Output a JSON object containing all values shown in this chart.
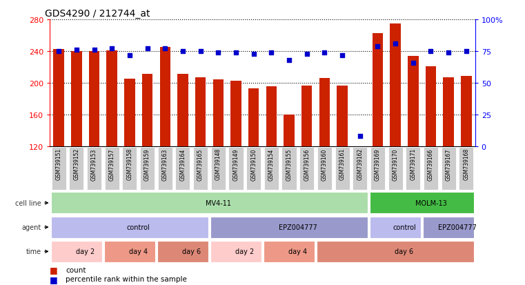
{
  "title": "GDS4290 / 212744_at",
  "samples": [
    "GSM739151",
    "GSM739152",
    "GSM739153",
    "GSM739157",
    "GSM739158",
    "GSM739159",
    "GSM739163",
    "GSM739164",
    "GSM739165",
    "GSM739148",
    "GSM739149",
    "GSM739150",
    "GSM739154",
    "GSM739155",
    "GSM739156",
    "GSM739160",
    "GSM739161",
    "GSM739162",
    "GSM739169",
    "GSM739170",
    "GSM739171",
    "GSM739166",
    "GSM739167",
    "GSM739168"
  ],
  "counts": [
    243,
    240,
    240,
    241,
    205,
    211,
    245,
    211,
    207,
    204,
    203,
    193,
    196,
    160,
    197,
    206,
    197,
    120,
    263,
    275,
    234,
    221,
    207,
    209
  ],
  "percentile": [
    75,
    76,
    76,
    77,
    72,
    77,
    77,
    75,
    75,
    74,
    74,
    73,
    74,
    68,
    73,
    74,
    72,
    8,
    79,
    81,
    66,
    75,
    74,
    75
  ],
  "ylim_left": [
    120,
    280
  ],
  "ylim_right": [
    0,
    100
  ],
  "yticks_left": [
    120,
    160,
    200,
    240,
    280
  ],
  "yticks_right": [
    0,
    25,
    50,
    75,
    100
  ],
  "bar_color": "#cc2200",
  "dot_color": "#0000cc",
  "cell_line_spans": [
    {
      "label": "MV4-11",
      "start": 0,
      "end": 18,
      "color": "#aaddaa"
    },
    {
      "label": "MOLM-13",
      "start": 18,
      "end": 24,
      "color": "#44bb44"
    }
  ],
  "agent_spans": [
    {
      "label": "control",
      "start": 0,
      "end": 9,
      "color": "#bbbbee"
    },
    {
      "label": "EPZ004777",
      "start": 9,
      "end": 18,
      "color": "#9999cc"
    },
    {
      "label": "control",
      "start": 18,
      "end": 21,
      "color": "#bbbbee"
    },
    {
      "label": "EPZ004777",
      "start": 21,
      "end": 24,
      "color": "#9999cc"
    }
  ],
  "time_spans": [
    {
      "label": "day 2",
      "start": 0,
      "end": 3,
      "color": "#ffcccc"
    },
    {
      "label": "day 4",
      "start": 3,
      "end": 6,
      "color": "#ee9988"
    },
    {
      "label": "day 6",
      "start": 6,
      "end": 9,
      "color": "#dd8877"
    },
    {
      "label": "day 2",
      "start": 9,
      "end": 12,
      "color": "#ffcccc"
    },
    {
      "label": "day 4",
      "start": 12,
      "end": 15,
      "color": "#ee9988"
    },
    {
      "label": "day 6",
      "start": 15,
      "end": 24,
      "color": "#dd8877"
    }
  ],
  "bg_color": "#ffffff",
  "xticklabel_bg": "#cccccc",
  "row_label_color": "#333333",
  "row_label_fontsize": 7,
  "bar_fontsize": 5.5,
  "ann_fontsize": 7,
  "title_fontsize": 10
}
